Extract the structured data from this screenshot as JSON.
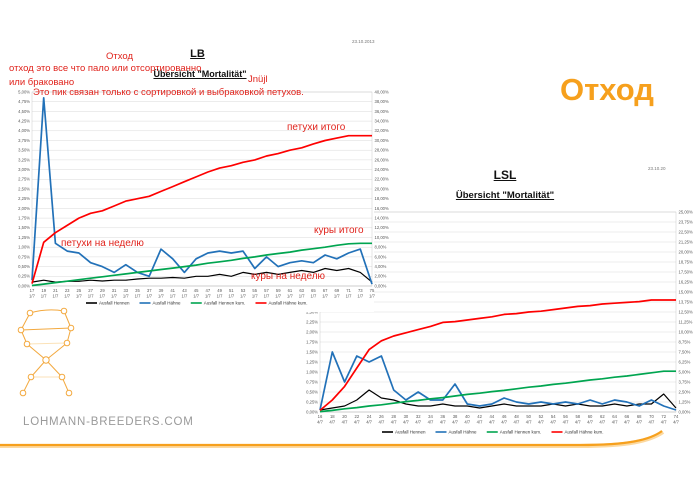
{
  "slide": {
    "big_title": "Отход",
    "footer": "LOHMANN-BREEDERS.COM",
    "accent_color": "#F6A01D",
    "red_color": "#E0231C"
  },
  "annotations": {
    "otkhod_small": "Отход",
    "definition_line1": "отход это все что пало или отсортированно",
    "definition_line2": "или браковано",
    "peak_note": "Это пик связан только с сортировкой и выбраковкой петухов.",
    "jnujl": "Jnüjl",
    "roosters_total": "петухи итого",
    "roosters_weekly": "петухи на неделю",
    "hens_total": "куры итого",
    "hens_weekly": "куры на неделю"
  },
  "chart_data": [
    {
      "id": "lb",
      "type": "line",
      "title": "LB",
      "subtitle": "Übersicht \"Mortalität\"",
      "date": "23.10.2013",
      "grid": true,
      "legend_position": "bottom",
      "x_sub_label": "1/7",
      "left_axis": {
        "min": 0,
        "max": 5,
        "step": 0.25,
        "format": "percent-de"
      },
      "right_axis": {
        "min": 0,
        "max": 40,
        "step": 2,
        "format": "percent-de"
      },
      "categories": [
        17,
        19,
        21,
        23,
        25,
        27,
        29,
        31,
        33,
        35,
        37,
        39,
        41,
        43,
        45,
        47,
        49,
        51,
        53,
        55,
        57,
        59,
        61,
        63,
        65,
        67,
        69,
        71,
        73,
        75
      ],
      "series": [
        {
          "name": "Ausfall Hennen",
          "color": "#000000",
          "axis": "left",
          "values": [
            0.1,
            0.15,
            0.1,
            0.12,
            0.12,
            0.15,
            0.13,
            0.15,
            0.15,
            0.18,
            0.2,
            0.2,
            0.22,
            0.2,
            0.25,
            0.25,
            0.3,
            0.25,
            0.35,
            0.3,
            0.35,
            0.3,
            0.35,
            0.4,
            0.35,
            0.45,
            0.4,
            0.45,
            0.35,
            0.1
          ]
        },
        {
          "name": "Ausfall Hähne",
          "color": "#2271B8",
          "axis": "left",
          "values": [
            0.15,
            4.85,
            1.1,
            0.9,
            0.85,
            0.6,
            0.5,
            0.35,
            0.55,
            0.35,
            0.25,
            0.95,
            0.7,
            0.35,
            0.7,
            0.85,
            0.9,
            0.85,
            0.9,
            0.45,
            0.75,
            0.5,
            0.6,
            0.65,
            0.6,
            0.8,
            0.7,
            0.85,
            0.95,
            0.05
          ]
        },
        {
          "name": "Ausfall Hennen kum.",
          "color": "#00A550",
          "axis": "right",
          "values": [
            0.1,
            0.4,
            0.7,
            1.0,
            1.3,
            1.6,
            1.9,
            2.2,
            2.5,
            2.8,
            3.1,
            3.4,
            3.7,
            4.0,
            4.3,
            4.7,
            5.0,
            5.3,
            5.7,
            6.0,
            6.4,
            6.7,
            7.0,
            7.4,
            7.7,
            8.0,
            8.4,
            8.7,
            8.8,
            8.8
          ]
        },
        {
          "name": "Ausfall Hähne kum.",
          "color": "#FE0000",
          "axis": "right",
          "values": [
            0.5,
            9.0,
            11.0,
            12.5,
            14.0,
            15.0,
            15.5,
            16.5,
            17.5,
            18.0,
            18.5,
            19.5,
            20.5,
            21.5,
            22.5,
            23.5,
            24.3,
            24.8,
            25.5,
            26.0,
            26.8,
            27.3,
            28.0,
            28.5,
            29.3,
            30.0,
            30.5,
            31.0,
            31.0,
            31.0
          ]
        }
      ]
    },
    {
      "id": "lsl",
      "type": "line",
      "title": "LSL",
      "subtitle": "Übersicht \"Mortalität\"",
      "date": "23.10.20",
      "grid": true,
      "legend_position": "bottom",
      "x_sub_label": "4/7",
      "left_axis": {
        "min": 0,
        "max": 5,
        "step": 0.25,
        "format": "percent-de"
      },
      "right_axis": {
        "min": 0,
        "max": 25,
        "step": 1.25,
        "format": "percent-de"
      },
      "categories": [
        16,
        18,
        20,
        22,
        24,
        26,
        28,
        30,
        32,
        34,
        36,
        38,
        40,
        42,
        44,
        46,
        48,
        50,
        52,
        54,
        56,
        58,
        60,
        62,
        64,
        66,
        68,
        70,
        72,
        74
      ],
      "series": [
        {
          "name": "Ausfall Hennen",
          "color": "#000000",
          "axis": "left",
          "values": [
            0.05,
            0.1,
            0.15,
            0.3,
            0.55,
            0.35,
            0.3,
            0.2,
            0.15,
            0.15,
            0.2,
            0.15,
            0.15,
            0.1,
            0.15,
            0.2,
            0.15,
            0.15,
            0.15,
            0.2,
            0.15,
            0.2,
            0.15,
            0.15,
            0.2,
            0.15,
            0.2,
            0.2,
            0.45,
            0.1
          ]
        },
        {
          "name": "Ausfall Hähne",
          "color": "#2271B8",
          "axis": "left",
          "values": [
            0.05,
            1.5,
            0.75,
            1.4,
            1.25,
            1.4,
            0.55,
            0.3,
            0.5,
            0.3,
            0.3,
            0.7,
            0.2,
            0.15,
            0.2,
            0.35,
            0.25,
            0.2,
            0.25,
            0.2,
            0.25,
            0.2,
            0.3,
            0.2,
            0.3,
            0.25,
            0.15,
            0.3,
            0.15,
            0.05
          ]
        },
        {
          "name": "Ausfall Hennen kum.",
          "color": "#00A550",
          "axis": "right",
          "values": [
            0.05,
            0.2,
            0.4,
            0.55,
            0.75,
            0.9,
            1.1,
            1.3,
            1.45,
            1.65,
            1.8,
            2.0,
            2.2,
            2.35,
            2.55,
            2.7,
            2.9,
            3.1,
            3.25,
            3.45,
            3.6,
            3.8,
            4.0,
            4.15,
            4.35,
            4.5,
            4.7,
            4.9,
            5.1,
            5.1
          ]
        },
        {
          "name": "Ausfall Hähne kum.",
          "color": "#FE0000",
          "axis": "right",
          "values": [
            0.2,
            1.5,
            3.2,
            5.5,
            7.8,
            8.9,
            9.5,
            9.9,
            10.3,
            10.7,
            11.2,
            11.3,
            11.5,
            11.7,
            11.9,
            12.2,
            12.3,
            12.5,
            12.6,
            12.8,
            13.0,
            13.2,
            13.3,
            13.5,
            13.6,
            13.7,
            13.8,
            14.0,
            14.0,
            14.0
          ]
        }
      ]
    }
  ]
}
